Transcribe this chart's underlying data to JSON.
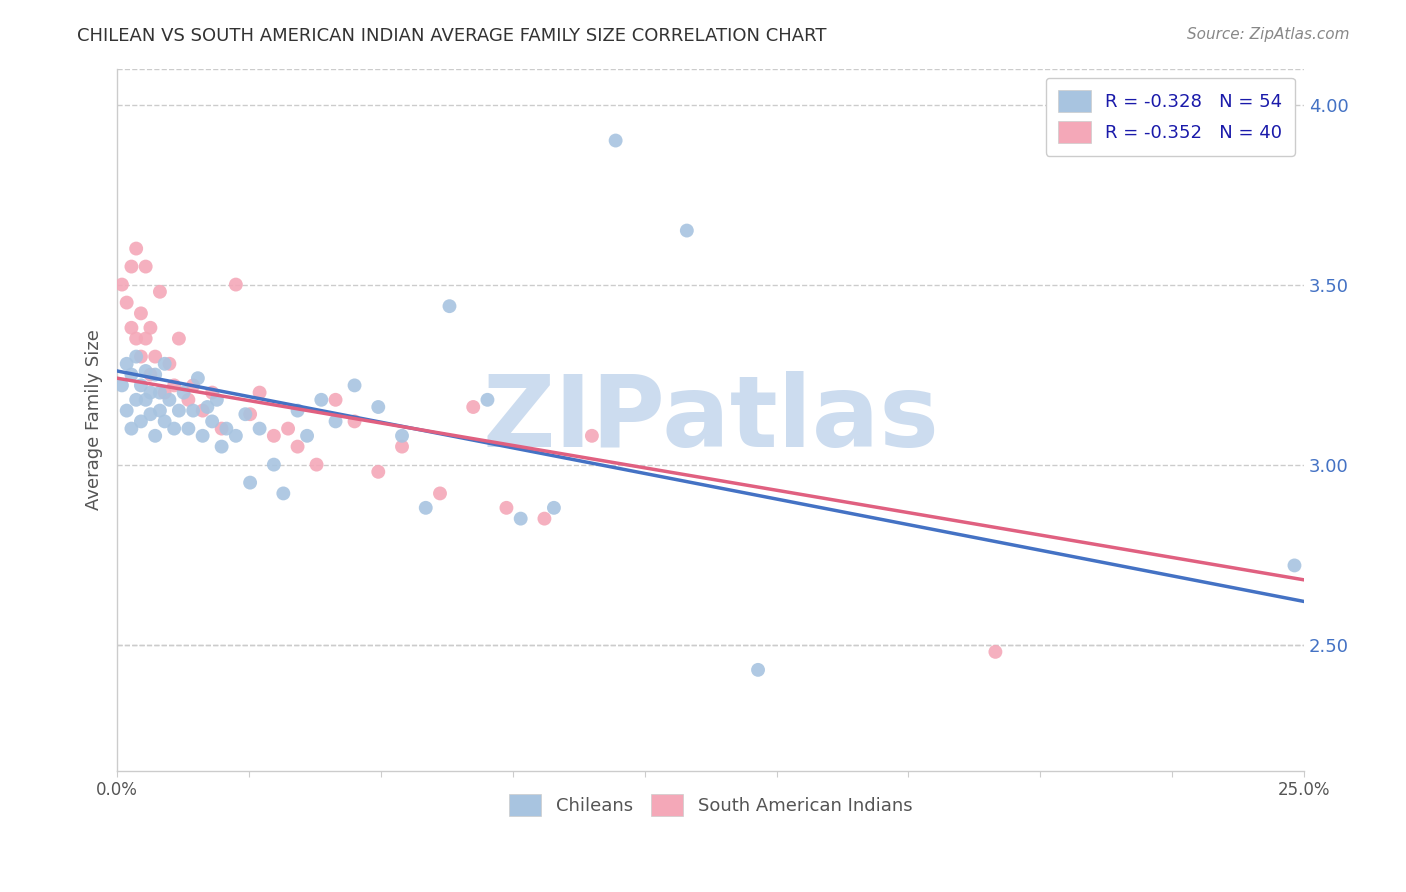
{
  "title": "CHILEAN VS SOUTH AMERICAN INDIAN AVERAGE FAMILY SIZE CORRELATION CHART",
  "source": "Source: ZipAtlas.com",
  "ylabel": "Average Family Size",
  "xmin": 0.0,
  "xmax": 0.25,
  "ymin": 2.15,
  "ymax": 4.1,
  "yticks_right": [
    2.5,
    3.0,
    3.5,
    4.0
  ],
  "yticks_right_labels": [
    "2.50",
    "3.00",
    "3.50",
    "4.00"
  ],
  "legend_blue_r": "R = -0.328",
  "legend_blue_n": "N = 54",
  "legend_pink_r": "R = -0.352",
  "legend_pink_n": "N = 40",
  "blue_color": "#a8c4e0",
  "pink_color": "#f4a8b8",
  "blue_line_color": "#4472c4",
  "pink_line_color": "#e06080",
  "watermark": "ZIPatlas",
  "watermark_color": "#ccdcef",
  "blue_scatter_x": [
    0.001,
    0.002,
    0.002,
    0.003,
    0.003,
    0.004,
    0.004,
    0.005,
    0.005,
    0.006,
    0.006,
    0.007,
    0.007,
    0.008,
    0.008,
    0.009,
    0.009,
    0.01,
    0.01,
    0.011,
    0.012,
    0.013,
    0.014,
    0.015,
    0.016,
    0.017,
    0.018,
    0.019,
    0.02,
    0.021,
    0.022,
    0.023,
    0.025,
    0.027,
    0.028,
    0.03,
    0.033,
    0.035,
    0.038,
    0.04,
    0.043,
    0.046,
    0.05,
    0.055,
    0.06,
    0.065,
    0.07,
    0.078,
    0.085,
    0.092,
    0.105,
    0.12,
    0.135,
    0.248
  ],
  "blue_scatter_y": [
    3.22,
    3.28,
    3.15,
    3.25,
    3.1,
    3.3,
    3.18,
    3.22,
    3.12,
    3.26,
    3.18,
    3.2,
    3.14,
    3.25,
    3.08,
    3.2,
    3.15,
    3.28,
    3.12,
    3.18,
    3.1,
    3.15,
    3.2,
    3.1,
    3.15,
    3.24,
    3.08,
    3.16,
    3.12,
    3.18,
    3.05,
    3.1,
    3.08,
    3.14,
    2.95,
    3.1,
    3.0,
    2.92,
    3.15,
    3.08,
    3.18,
    3.12,
    3.22,
    3.16,
    3.08,
    2.88,
    3.44,
    3.18,
    2.85,
    2.88,
    3.9,
    3.65,
    2.43,
    2.72
  ],
  "pink_scatter_x": [
    0.001,
    0.002,
    0.003,
    0.003,
    0.004,
    0.004,
    0.005,
    0.005,
    0.006,
    0.006,
    0.007,
    0.007,
    0.008,
    0.009,
    0.01,
    0.011,
    0.012,
    0.013,
    0.015,
    0.016,
    0.018,
    0.02,
    0.022,
    0.025,
    0.028,
    0.03,
    0.033,
    0.036,
    0.038,
    0.042,
    0.046,
    0.05,
    0.055,
    0.06,
    0.068,
    0.075,
    0.082,
    0.09,
    0.1,
    0.185
  ],
  "pink_scatter_y": [
    3.5,
    3.45,
    3.55,
    3.38,
    3.6,
    3.35,
    3.42,
    3.3,
    3.55,
    3.35,
    3.38,
    3.25,
    3.3,
    3.48,
    3.2,
    3.28,
    3.22,
    3.35,
    3.18,
    3.22,
    3.15,
    3.2,
    3.1,
    3.5,
    3.14,
    3.2,
    3.08,
    3.1,
    3.05,
    3.0,
    3.18,
    3.12,
    2.98,
    3.05,
    2.92,
    3.16,
    2.88,
    2.85,
    3.08,
    2.48
  ],
  "blue_line_x0": 0.0,
  "blue_line_y0": 3.26,
  "blue_line_x1": 0.25,
  "blue_line_y1": 2.62,
  "pink_line_x0": 0.0,
  "pink_line_y0": 3.24,
  "pink_line_x1": 0.25,
  "pink_line_y1": 2.68,
  "background_color": "#ffffff",
  "grid_color": "#cccccc",
  "title_color": "#333333",
  "right_axis_color": "#4472c4",
  "marker_size": 100
}
